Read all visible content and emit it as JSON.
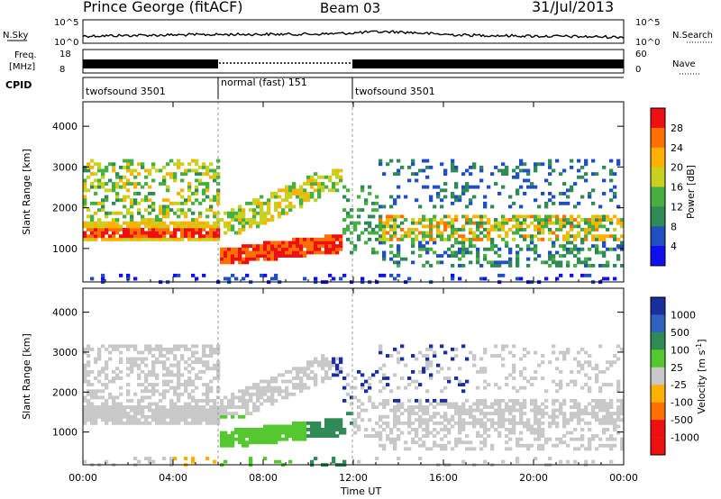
{
  "header": {
    "site": "Prince George (fitACF)",
    "beam": "Beam 03",
    "date": "31/Jul/2013"
  },
  "top_panels": {
    "nsky_label": "N.Sky",
    "nsky_ticks": [
      "10^5",
      "10^0"
    ],
    "nsearch_label": "N.Search",
    "freq_label_1": "Freq.",
    "freq_label_2": "[MHz]",
    "freq_ticks": [
      "18",
      "8"
    ],
    "nave_ticks": [
      "60",
      "0"
    ],
    "nave_label": "Nave",
    "cpid_label": "CPID",
    "cpid_segments": [
      {
        "name": "twofsound 3501",
        "start_hour": 0,
        "end_hour": 6.0
      },
      {
        "name": "normal (fast) 151",
        "start_hour": 6.0,
        "end_hour": 12.0
      },
      {
        "name": "twofsound 3501",
        "start_hour": 12.0,
        "end_hour": 24.0
      }
    ]
  },
  "chart_data": [
    {
      "type": "heatmap",
      "name": "power",
      "ylabel": "Slant Range [km]",
      "ylim": [
        180,
        4600
      ],
      "yticks": [
        "4000",
        "3000",
        "2000",
        "1000"
      ],
      "colorbar_label": "Power [dB]",
      "colorbar_ticks": [
        "28",
        "24",
        "20",
        "16",
        "12",
        "8",
        "4"
      ],
      "colors": [
        "#1010ee",
        "#2050c0",
        "#2f8a55",
        "#45b040",
        "#c8d020",
        "#ffb000",
        "#ff7000",
        "#ee1010"
      ],
      "dominant_bands": [
        {
          "start_hour": 0,
          "end_hour": 6.0,
          "range_km": [
            1300,
            1600
          ],
          "level_db": 26
        },
        {
          "start_hour": 6.0,
          "end_hour": 11.0,
          "range_km": [
            750,
            1200
          ],
          "level_db": 28
        }
      ]
    },
    {
      "type": "heatmap",
      "name": "velocity",
      "xlabel": "Time UT",
      "xticks": [
        "00:00",
        "04:00",
        "08:00",
        "12:00",
        "16:00",
        "20:00",
        "00:00"
      ],
      "ylabel": "Slant Range [km]",
      "ylim": [
        180,
        4600
      ],
      "yticks": [
        "4000",
        "3000",
        "2000",
        "1000"
      ],
      "colorbar_label": "Velocity [m s",
      "colorbar_label_sup": "-1",
      "colorbar_label_end": "]",
      "colorbar_ticks": [
        "1000",
        "500",
        "100",
        "25",
        "-25",
        "-100",
        "-500",
        "-1000"
      ],
      "colors": [
        "#1a2e9e",
        "#3060c0",
        "#2f8a55",
        "#55c830",
        "#c8c8c8",
        "#ffb000",
        "#ff7000",
        "#ee1010"
      ]
    }
  ]
}
